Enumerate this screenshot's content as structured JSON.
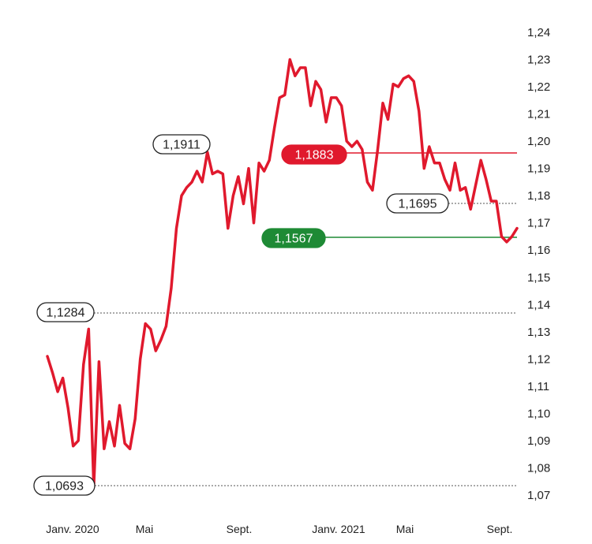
{
  "chart_data": {
    "type": "line",
    "title": "",
    "xlabel": "",
    "ylabel": "",
    "ylim": [
      1.07,
      1.24
    ],
    "y_ticks": [
      "1,07",
      "1,08",
      "1,09",
      "1,10",
      "1,11",
      "1,12",
      "1,13",
      "1,14",
      "1,15",
      "1,16",
      "1,17",
      "1,18",
      "1,19",
      "1,20",
      "1,21",
      "1,22",
      "1,23",
      "1,24"
    ],
    "x_tick_labels": [
      "Janv. 2020",
      "Mai",
      "Sept.",
      "Janv. 2021",
      "Mai",
      "Sept."
    ],
    "x_tick_dates": [
      "2020-01",
      "2020-05",
      "2020-09",
      "2021-01",
      "2021-05",
      "2021-09"
    ],
    "grid": false,
    "colors": {
      "line": "#e0192d",
      "green": "#1e8a35",
      "dotted": "#555555"
    },
    "series": [
      {
        "values": [
          1.121,
          1.115,
          1.108,
          1.113,
          1.102,
          1.088,
          1.09,
          1.118,
          1.131,
          1.073,
          1.119,
          1.087,
          1.097,
          1.088,
          1.103,
          1.089,
          1.087,
          1.098,
          1.12,
          1.133,
          1.131,
          1.123,
          1.127,
          1.132,
          1.146,
          1.168,
          1.18,
          1.183,
          1.185,
          1.189,
          1.185,
          1.196,
          1.188,
          1.189,
          1.188,
          1.168,
          1.18,
          1.187,
          1.177,
          1.19,
          1.17,
          1.192,
          1.189,
          1.193,
          1.205,
          1.216,
          1.217,
          1.23,
          1.224,
          1.227,
          1.227,
          1.213,
          1.222,
          1.219,
          1.207,
          1.216,
          1.216,
          1.213,
          1.2,
          1.198,
          1.2,
          1.197,
          1.185,
          1.182,
          1.197,
          1.214,
          1.208,
          1.221,
          1.22,
          1.223,
          1.224,
          1.222,
          1.211,
          1.19,
          1.198,
          1.192,
          1.192,
          1.186,
          1.182,
          1.192,
          1.182,
          1.183,
          1.175,
          1.184,
          1.193,
          1.186,
          1.178,
          1.178,
          1.165,
          1.163,
          1.165,
          1.168
        ]
      }
    ],
    "callouts": [
      {
        "label": "1,1911",
        "value": 1.1911,
        "style": "outline",
        "line": "none"
      },
      {
        "label": "1,1883",
        "value": 1.1883,
        "style": "red",
        "line": "solid-red"
      },
      {
        "label": "1,1695",
        "value": 1.1695,
        "style": "outline",
        "line": "dotted"
      },
      {
        "label": "1,1567",
        "value": 1.1567,
        "style": "green",
        "line": "solid-green"
      },
      {
        "label": "1,1284",
        "value": 1.1284,
        "style": "outline",
        "line": "dotted"
      },
      {
        "label": "1,0693",
        "value": 1.0693,
        "style": "outline",
        "line": "dotted"
      }
    ]
  }
}
